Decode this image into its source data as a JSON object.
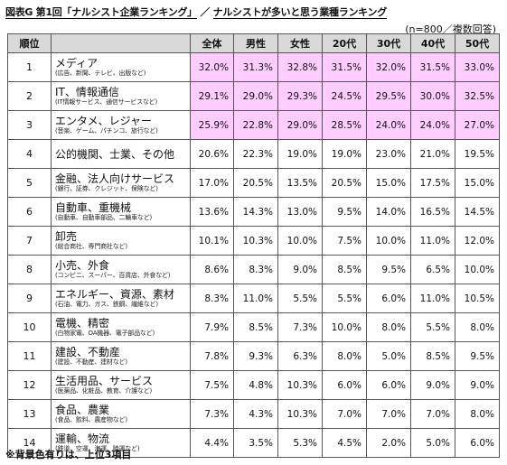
{
  "title_prefix": "図表G 第1回「ナルシスト企業ランキング」",
  "title_sep": " ／ ",
  "title_main": "ナルシストが多いと思う業種ランキング",
  "sample_note": "(n=800／複数回答)",
  "footnote": "※背景色有りは、上位3項目",
  "headers": {
    "rank": "順位",
    "industry": "",
    "all": "全体",
    "male": "男性",
    "female": "女性",
    "age20": "20代",
    "age30": "30代",
    "age40": "40代",
    "age50": "50代"
  },
  "colors": {
    "header_bg": "#d9d9d9",
    "highlight": "#ffccff",
    "border": "#555555"
  },
  "chart_data": {
    "type": "table",
    "columns": [
      "順位",
      "",
      "全体",
      "男性",
      "女性",
      "20代",
      "30代",
      "40代",
      "50代"
    ],
    "highlight_rows": [
      1,
      2,
      3
    ],
    "rows": [
      {
        "rank": "1",
        "name": "メディア",
        "sub": "(広告、新聞、テレビ、出版など)",
        "values": [
          "32.0%",
          "31.3%",
          "32.8%",
          "31.5%",
          "32.0%",
          "31.5%",
          "33.0%"
        ]
      },
      {
        "rank": "2",
        "name": "IT、情報通信",
        "sub": "(IT情報サービス、通信サービスなど)",
        "values": [
          "29.1%",
          "29.0%",
          "29.3%",
          "24.5%",
          "29.5%",
          "30.0%",
          "32.5%"
        ]
      },
      {
        "rank": "3",
        "name": "エンタメ、レジャー",
        "sub": "(音楽、ゲーム、パチンコ、旅行など)",
        "values": [
          "25.9%",
          "22.8%",
          "29.0%",
          "28.5%",
          "24.0%",
          "24.0%",
          "27.0%"
        ]
      },
      {
        "rank": "4",
        "name": "公的機関、士業、その他",
        "sub": "",
        "values": [
          "20.6%",
          "22.3%",
          "19.0%",
          "19.0%",
          "23.0%",
          "21.0%",
          "19.5%"
        ]
      },
      {
        "rank": "5",
        "name": "金融、法人向けサービス",
        "sub": "(銀行、証券、クレジット、保険など)",
        "values": [
          "17.0%",
          "20.5%",
          "13.5%",
          "20.5%",
          "15.0%",
          "17.5%",
          "15.0%"
        ]
      },
      {
        "rank": "6",
        "name": "自動車、重機械",
        "sub": "(自動車、自動車部品、二輪車など)",
        "values": [
          "13.6%",
          "14.3%",
          "13.0%",
          "9.5%",
          "14.0%",
          "16.5%",
          "14.5%"
        ]
      },
      {
        "rank": "7",
        "name": "卸売",
        "sub": "(総合商社、専門商社など)",
        "values": [
          "10.1%",
          "10.3%",
          "10.0%",
          "7.5%",
          "10.0%",
          "11.0%",
          "12.0%"
        ]
      },
      {
        "rank": "8",
        "name": "小売、外食",
        "sub": "(コンビニ、スーパー、百貨店、外食など)",
        "values": [
          "8.6%",
          "8.3%",
          "9.0%",
          "8.5%",
          "9.5%",
          "6.5%",
          "10.0%"
        ]
      },
      {
        "rank": "9",
        "name": "エネルギー、資源、素材",
        "sub": "(石油、電力、ガス、鉄鋼、繊維など)",
        "values": [
          "8.3%",
          "11.0%",
          "5.5%",
          "5.5%",
          "6.0%",
          "11.0%",
          "10.5%"
        ]
      },
      {
        "rank": "10",
        "name": "電機、精密",
        "sub": "(白物家電、OA機器、電子部品など)",
        "values": [
          "7.9%",
          "8.5%",
          "7.3%",
          "10.0%",
          "8.0%",
          "5.5%",
          "8.0%"
        ]
      },
      {
        "rank": "11",
        "name": "建設、不動産",
        "sub": "(建設、不動産、建材など)",
        "values": [
          "7.8%",
          "9.3%",
          "6.3%",
          "8.0%",
          "5.0%",
          "8.5%",
          "9.5%"
        ]
      },
      {
        "rank": "12",
        "name": "生活用品、サービス",
        "sub": "(医薬品、化粧品、教育、介護など)",
        "values": [
          "7.5%",
          "4.8%",
          "10.3%",
          "6.0%",
          "6.0%",
          "9.0%",
          "9.0%"
        ]
      },
      {
        "rank": "13",
        "name": "食品、農業",
        "sub": "(食品、飲料、農産物など)",
        "values": [
          "7.3%",
          "4.3%",
          "10.3%",
          "7.0%",
          "7.0%",
          "7.0%",
          "8.0%"
        ]
      },
      {
        "rank": "14",
        "name": "運輸、物流",
        "sub": "(鉄道、空運、海運、陸運など)",
        "values": [
          "4.4%",
          "3.5%",
          "5.3%",
          "4.5%",
          "2.0%",
          "5.0%",
          "6.0%"
        ]
      }
    ]
  }
}
